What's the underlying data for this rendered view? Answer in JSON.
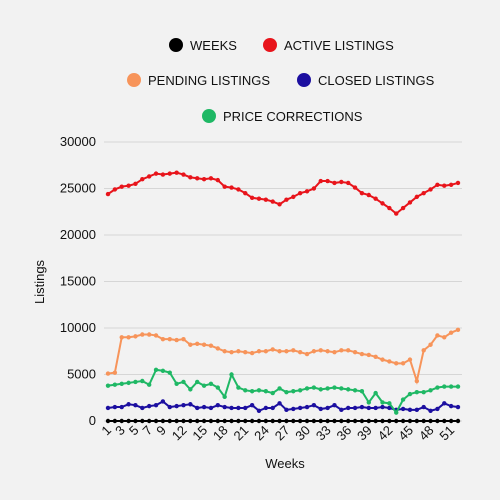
{
  "chart_data": {
    "type": "line",
    "xlabel": "Weeks",
    "ylabel": "Listings",
    "ylim": [
      0,
      30000
    ],
    "yticks": [
      "0",
      "5000",
      "10000",
      "15000",
      "20000",
      "25000",
      "30000"
    ],
    "xtick_labels": [
      "1",
      "3",
      "5",
      "7",
      "9",
      "12",
      "15",
      "18",
      "21",
      "24",
      "27",
      "30",
      "33",
      "36",
      "39",
      "42",
      "45",
      "48",
      "51"
    ],
    "grid": "horizontal",
    "legend_position": "top-center",
    "x": [
      1,
      2,
      3,
      4,
      5,
      6,
      7,
      8,
      9,
      10,
      11,
      12,
      13,
      14,
      15,
      16,
      17,
      18,
      19,
      20,
      21,
      22,
      23,
      24,
      25,
      26,
      27,
      28,
      29,
      30,
      31,
      32,
      33,
      34,
      35,
      36,
      37,
      38,
      39,
      40,
      41,
      42,
      43,
      44,
      45,
      46,
      47,
      48,
      49,
      50,
      51,
      52
    ],
    "series": [
      {
        "name": "WEEKS",
        "color": "#000000",
        "values": [
          0,
          0,
          0,
          0,
          0,
          0,
          0,
          0,
          0,
          0,
          0,
          0,
          0,
          0,
          0,
          0,
          0,
          0,
          0,
          0,
          0,
          0,
          0,
          0,
          0,
          0,
          0,
          0,
          0,
          0,
          0,
          0,
          0,
          0,
          0,
          0,
          0,
          0,
          0,
          0,
          0,
          0,
          0,
          0,
          0,
          0,
          0,
          0,
          0,
          0,
          0,
          0
        ]
      },
      {
        "name": "ACTIVE LISTINGS",
        "color": "#e8141b",
        "values": [
          24400,
          24900,
          25200,
          25300,
          25500,
          26000,
          26300,
          26600,
          26500,
          26600,
          26700,
          26500,
          26200,
          26100,
          26000,
          26100,
          25900,
          25200,
          25100,
          24900,
          24500,
          24000,
          23900,
          23800,
          23600,
          23300,
          23800,
          24100,
          24500,
          24700,
          25000,
          25800,
          25800,
          25600,
          25700,
          25600,
          25100,
          24500,
          24300,
          23900,
          23400,
          22900,
          22300,
          22900,
          23500,
          24100,
          24500,
          24900,
          25400,
          25300,
          25400,
          25600
        ]
      },
      {
        "name": "PENDING LISTINGS",
        "color": "#f7945a",
        "values": [
          5100,
          5200,
          9000,
          9000,
          9100,
          9300,
          9300,
          9200,
          8800,
          8800,
          8700,
          8800,
          8200,
          8300,
          8200,
          8100,
          7800,
          7500,
          7400,
          7500,
          7400,
          7300,
          7500,
          7500,
          7700,
          7500,
          7500,
          7600,
          7400,
          7200,
          7500,
          7600,
          7500,
          7400,
          7600,
          7600,
          7400,
          7200,
          7100,
          6900,
          6600,
          6400,
          6200,
          6200,
          6600,
          4300,
          7600,
          8200,
          9200,
          9000,
          9500,
          9800
        ]
      },
      {
        "name": "CLOSED LISTINGS",
        "color": "#1c0fa0",
        "values": [
          1400,
          1500,
          1500,
          1800,
          1700,
          1400,
          1600,
          1700,
          2100,
          1500,
          1600,
          1700,
          1800,
          1400,
          1500,
          1400,
          1700,
          1500,
          1400,
          1400,
          1400,
          1700,
          1100,
          1400,
          1400,
          1900,
          1200,
          1300,
          1400,
          1500,
          1700,
          1300,
          1400,
          1700,
          1200,
          1400,
          1400,
          1500,
          1400,
          1400,
          1500,
          1400,
          1200,
          1300,
          1200,
          1200,
          1500,
          1100,
          1300,
          1900,
          1600,
          1500
        ]
      },
      {
        "name": "PRICE CORRECTIONS",
        "color": "#1fb865",
        "values": [
          3800,
          3900,
          4000,
          4100,
          4200,
          4300,
          3900,
          5500,
          5400,
          5200,
          4000,
          4200,
          3400,
          4200,
          3800,
          4000,
          3600,
          2600,
          5000,
          3600,
          3300,
          3200,
          3300,
          3200,
          3000,
          3500,
          3100,
          3200,
          3300,
          3500,
          3600,
          3400,
          3500,
          3600,
          3500,
          3400,
          3300,
          3200,
          2000,
          3000,
          2000,
          1900,
          900,
          2300,
          2900,
          3100,
          3100,
          3300,
          3600,
          3700,
          3700,
          3700
        ]
      }
    ]
  }
}
